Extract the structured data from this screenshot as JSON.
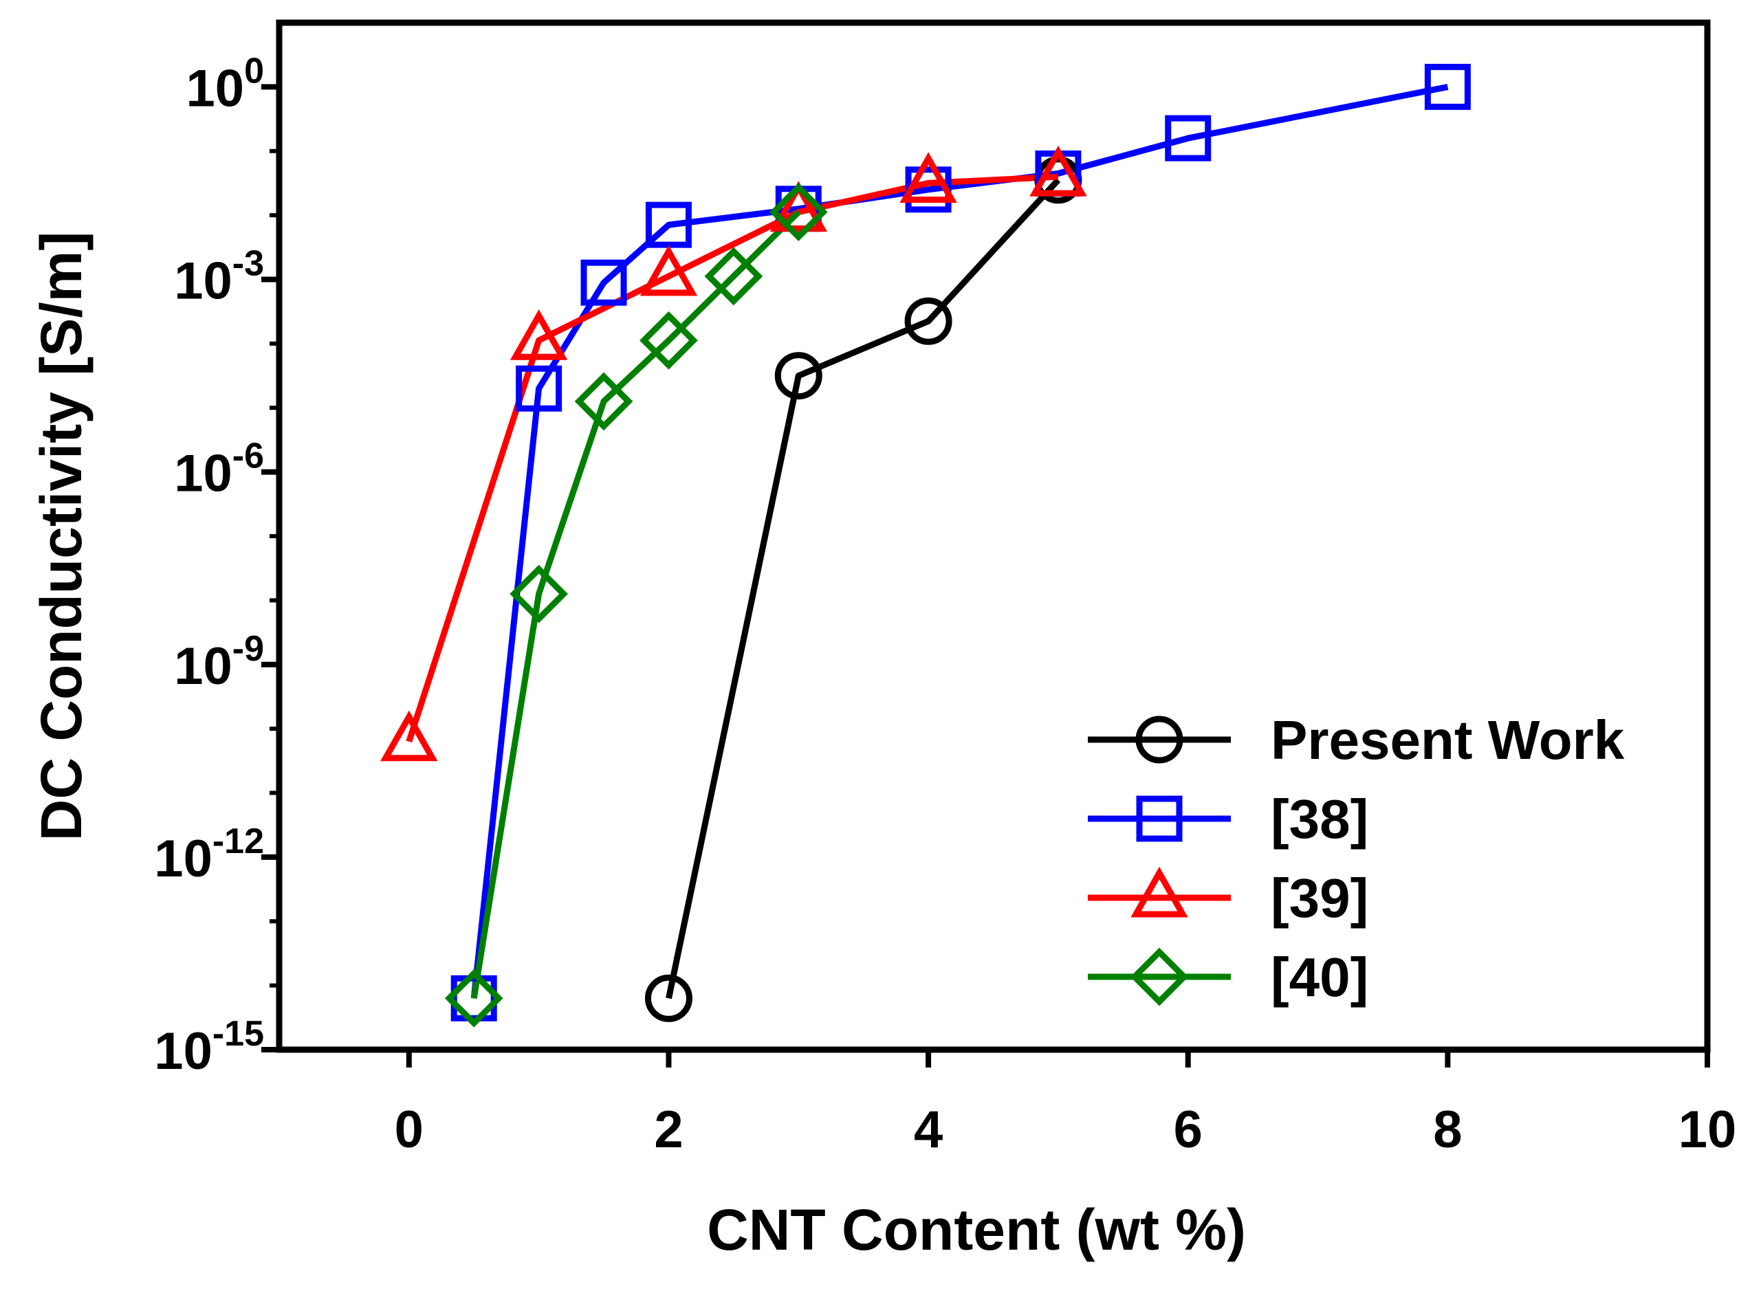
{
  "chart_data": {
    "type": "line",
    "title": "",
    "xlabel": "CNT Content (wt %)",
    "ylabel": "DC Conductivity [S/m]",
    "x_scale": "linear",
    "y_scale": "log10",
    "xlim": [
      -1,
      10
    ],
    "ylim_log10": [
      -15,
      1
    ],
    "x_ticks": [
      0,
      2,
      4,
      6,
      8,
      10
    ],
    "y_ticks": [
      {
        "base": "10",
        "exp": "0",
        "value": 0
      },
      {
        "base": "10",
        "exp": "-3",
        "value": -3
      },
      {
        "base": "10",
        "exp": "-6",
        "value": -6
      },
      {
        "base": "10",
        "exp": "-9",
        "value": -9
      },
      {
        "base": "10",
        "exp": "-12",
        "value": -12
      },
      {
        "base": "10",
        "exp": "-15",
        "value": -15
      }
    ],
    "legend_position": "bottom-right",
    "grid": false,
    "series": [
      {
        "name": "Present Work",
        "color": "#000000",
        "marker": "circle",
        "x": [
          2,
          3,
          4,
          5
        ],
        "log10_y": [
          -14.2,
          -4.5,
          -3.65,
          -1.45
        ]
      },
      {
        "name": "[38]",
        "color": "#0000ff",
        "marker": "square",
        "x": [
          0.5,
          1,
          1.5,
          2,
          3,
          4,
          5,
          6,
          8
        ],
        "log10_y": [
          -14.2,
          -4.7,
          -3.05,
          -2.15,
          -1.9,
          -1.6,
          -1.35,
          -0.8,
          0
        ]
      },
      {
        "name": "[39]",
        "color": "#ff0000",
        "marker": "triangle",
        "x": [
          0,
          1,
          2,
          3,
          4,
          5
        ],
        "log10_y": [
          -10.2,
          -3.95,
          -2.95,
          -1.95,
          -1.5,
          -1.4
        ]
      },
      {
        "name": "[40]",
        "color": "#008000",
        "marker": "diamond",
        "x": [
          0.5,
          1,
          1.5,
          2,
          2.5,
          3
        ],
        "log10_y": [
          -14.2,
          -7.9,
          -4.9,
          -3.95,
          -2.95,
          -1.95
        ]
      }
    ]
  }
}
